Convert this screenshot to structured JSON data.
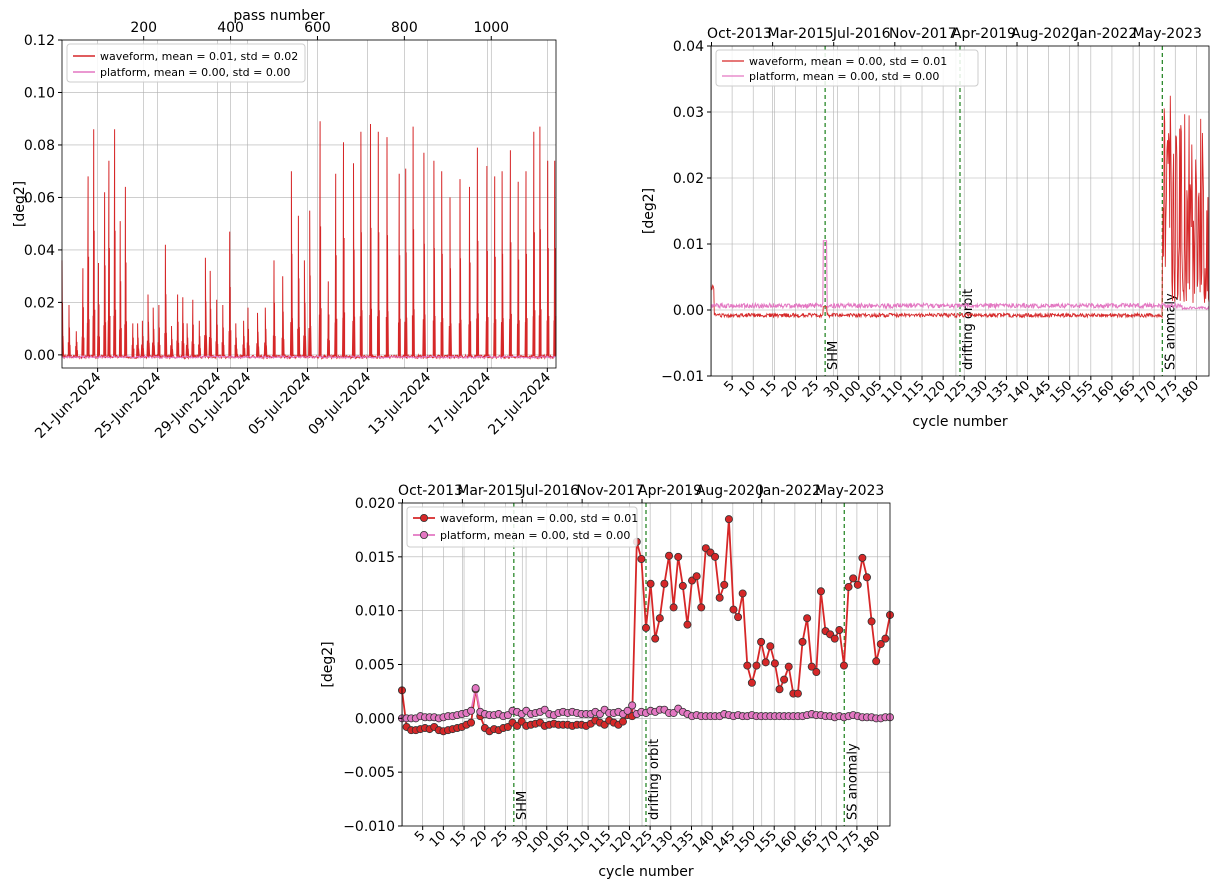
{
  "chart_data": [
    {
      "id": "p1",
      "type": "line",
      "ylabel": "[deg2]",
      "top_axis_label": "pass number",
      "ylim": [
        -0.005,
        0.12
      ],
      "yticks": [
        "0.00",
        "0.02",
        "0.04",
        "0.06",
        "0.08",
        "0.10",
        "0.12"
      ],
      "ytick_values": [
        0,
        0.02,
        0.04,
        0.06,
        0.08,
        0.1,
        0.12
      ],
      "x_bottom_ticks": [
        "21-Jun-2024",
        "25-Jun-2024",
        "29-Jun-2024",
        "01-Jul-2024",
        "05-Jul-2024",
        "09-Jul-2024",
        "13-Jul-2024",
        "17-Jul-2024",
        "21-Jul-2024"
      ],
      "x_bottom_tick_pass": [
        94,
        232,
        370,
        439,
        577,
        715,
        853,
        991,
        1129
      ],
      "x_top_ticks": [
        "200",
        "400",
        "600",
        "800",
        "1000"
      ],
      "x_top_tick_values": [
        200,
        400,
        600,
        800,
        1000
      ],
      "xlim": [
        12,
        1149
      ],
      "legend": [
        {
          "label": "waveform, mean = 0.01, std = 0.02",
          "color": "#d62728"
        },
        {
          "label": "platform, mean = 0.00, std = 0.00",
          "color": "#e377c2"
        }
      ],
      "series": [
        {
          "name": "waveform",
          "color": "#d62728",
          "spikes": [
            [
              12,
              0.036
            ],
            [
              28,
              0.019
            ],
            [
              45,
              0.009
            ],
            [
              60,
              0.033
            ],
            [
              72,
              0.068
            ],
            [
              85,
              0.086
            ],
            [
              96,
              0.035
            ],
            [
              110,
              0.062
            ],
            [
              120,
              0.074
            ],
            [
              133,
              0.086
            ],
            [
              146,
              0.051
            ],
            [
              158,
              0.064
            ],
            [
              175,
              0.012
            ],
            [
              186,
              0.012
            ],
            [
              197,
              0.013
            ],
            [
              210,
              0.023
            ],
            [
              222,
              0.018
            ],
            [
              235,
              0.019
            ],
            [
              250,
              0.042
            ],
            [
              264,
              0.011
            ],
            [
              278,
              0.023
            ],
            [
              290,
              0.022
            ],
            [
              300,
              0.012
            ],
            [
              313,
              0.021
            ],
            [
              328,
              0.013
            ],
            [
              342,
              0.037
            ],
            [
              353,
              0.032
            ],
            [
              368,
              0.021
            ],
            [
              382,
              0.019
            ],
            [
              398,
              0.047
            ],
            [
              412,
              0.012
            ],
            [
              430,
              0.013
            ],
            [
              440,
              0.018
            ],
            [
              462,
              0.016
            ],
            [
              480,
              0.018
            ],
            [
              500,
              0.036
            ],
            [
              520,
              0.03
            ],
            [
              540,
              0.07
            ],
            [
              556,
              0.053
            ],
            [
              570,
              0.036
            ],
            [
              582,
              0.055
            ],
            [
              606,
              0.089
            ],
            [
              625,
              0.028
            ],
            [
              642,
              0.069
            ],
            [
              660,
              0.081
            ],
            [
              683,
              0.073
            ],
            [
              700,
              0.085
            ],
            [
              722,
              0.088
            ],
            [
              740,
              0.085
            ],
            [
              760,
              0.083
            ],
            [
              788,
              0.069
            ],
            [
              803,
              0.071
            ],
            [
              820,
              0.087
            ],
            [
              845,
              0.077
            ],
            [
              868,
              0.074
            ],
            [
              886,
              0.07
            ],
            [
              905,
              0.06
            ],
            [
              928,
              0.067
            ],
            [
              950,
              0.064
            ],
            [
              968,
              0.079
            ],
            [
              990,
              0.072
            ],
            [
              1008,
              0.068
            ],
            [
              1025,
              0.07
            ],
            [
              1044,
              0.078
            ],
            [
              1062,
              0.066
            ],
            [
              1080,
              0.07
            ],
            [
              1098,
              0.085
            ],
            [
              1112,
              0.087
            ],
            [
              1130,
              0.074
            ],
            [
              1146,
              0.074
            ]
          ]
        },
        {
          "name": "platform",
          "color": "#e377c2",
          "baseline": -0.001
        }
      ]
    },
    {
      "id": "p2",
      "type": "line",
      "ylabel": "[deg2]",
      "xlabel": "cycle number",
      "ylim": [
        -0.01,
        0.04
      ],
      "yticks": [
        "−0.01",
        "0.00",
        "0.01",
        "0.02",
        "0.03",
        "0.04"
      ],
      "ytick_values": [
        -0.01,
        0,
        0.01,
        0.02,
        0.03,
        0.04
      ],
      "x_bottom_ticks": [
        "5",
        "10",
        "15",
        "20",
        "25",
        "30",
        "100",
        "105",
        "110",
        "115",
        "120",
        "125",
        "130",
        "135",
        "140",
        "145",
        "150",
        "155",
        "160",
        "165",
        "170",
        "175",
        "180"
      ],
      "x_top_ticks": [
        "Oct-2013",
        "Mar-2015",
        "Jul-2016",
        "Nov-2017",
        "Apr-2019",
        "Aug-2020",
        "Jan-2022",
        "May-2023"
      ],
      "events": [
        {
          "label": "SHM",
          "pos": 11
        },
        {
          "label": "drifting orbit",
          "pos": 24
        },
        {
          "label": "SS anomaly",
          "pos": 43.5
        }
      ],
      "legend": [
        {
          "label": "waveform, mean = 0.00, std = 0.01",
          "color": "#d62728"
        },
        {
          "label": "platform, mean = 0.00, std = 0.00",
          "color": "#e377c2"
        }
      ],
      "series": [
        {
          "name": "waveform",
          "color": "#d62728",
          "pre_level": -0.001,
          "post_mean": 0.012
        },
        {
          "name": "platform",
          "color": "#e377c2",
          "level": 0.0005
        }
      ]
    },
    {
      "id": "p3",
      "type": "line",
      "ylabel": "[deg2]",
      "xlabel": "cycle number",
      "ylim": [
        -0.01,
        0.02
      ],
      "yticks": [
        "−0.010",
        "−0.005",
        "0.000",
        "0.005",
        "0.010",
        "0.015",
        "0.020"
      ],
      "ytick_values": [
        -0.01,
        -0.005,
        0,
        0.005,
        0.01,
        0.015,
        0.02
      ],
      "x_bottom_ticks": [
        "5",
        "10",
        "15",
        "20",
        "25",
        "30",
        "100",
        "105",
        "110",
        "115",
        "120",
        "125",
        "130",
        "135",
        "140",
        "145",
        "150",
        "155",
        "160",
        "165",
        "170",
        "175",
        "180"
      ],
      "x_top_ticks": [
        "Oct-2013",
        "Mar-2015",
        "Jul-2016",
        "Nov-2017",
        "Apr-2019",
        "Aug-2020",
        "Jan-2022",
        "May-2023"
      ],
      "events": [
        {
          "label": "SHM",
          "pos": 11
        },
        {
          "label": "drifting orbit",
          "pos": 24
        },
        {
          "label": "SS anomaly",
          "pos": 43.5
        }
      ],
      "legend": [
        {
          "label": "waveform, mean = 0.00, std = 0.01",
          "color": "#d62728"
        },
        {
          "label": "platform, mean = 0.00, std = 0.00",
          "color": "#e377c2"
        }
      ],
      "series": [
        {
          "name": "waveform",
          "color": "#d62728",
          "values": [
            0.0026,
            -0.0008,
            -0.0011,
            -0.0011,
            -0.001,
            -0.0009,
            -0.001,
            -0.0008,
            -0.0011,
            -0.0012,
            -0.0011,
            -0.001,
            -0.0009,
            -0.0008,
            -0.0006,
            -0.0004,
            0.0027,
            0.0002,
            -0.0009,
            -0.0012,
            -0.001,
            -0.0011,
            -0.0009,
            -0.0008,
            -0.0004,
            -0.0007,
            -0.0003,
            -0.0007,
            -0.0006,
            -0.0005,
            -0.0004,
            -0.0007,
            -0.0006,
            -0.0005,
            -0.0006,
            -0.0006,
            -0.0006,
            -0.0007,
            -0.0006,
            -0.0006,
            -0.0007,
            -0.0005,
            -0.0002,
            -0.0004,
            -0.0006,
            -0.0002,
            -0.0004,
            -0.0006,
            -0.0003,
            0.0003,
            0.0002,
            0.0164,
            0.0148,
            0.0084,
            0.0125,
            0.0074,
            0.0093,
            0.0125,
            0.0151,
            0.0103,
            0.015,
            0.0123,
            0.0087,
            0.0128,
            0.0132,
            0.0103,
            0.0158,
            0.0154,
            0.015,
            0.0112,
            0.0124,
            0.0185,
            0.0101,
            0.0094,
            0.0116,
            0.0049,
            0.0033,
            0.0049,
            0.0071,
            0.0052,
            0.0067,
            0.0051,
            0.0027,
            0.0036,
            0.0048,
            0.0023,
            0.0023,
            0.0071,
            0.0093,
            0.0048,
            0.0043,
            0.0118,
            0.0081,
            0.0078,
            0.0074,
            0.0082,
            0.0049,
            0.0122,
            0.013,
            0.0124,
            0.0149,
            0.0131,
            0.009,
            0.0053,
            0.0069,
            0.0074,
            0.0096
          ]
        },
        {
          "name": "platform",
          "color": "#e377c2",
          "values": [
            0.0,
            0.0,
            0.0,
            0.0,
            0.0002,
            0.0001,
            0.0001,
            0.0001,
            0.0,
            0.0001,
            0.0002,
            0.0002,
            0.0003,
            0.0004,
            0.0005,
            0.0007,
            0.0028,
            0.0006,
            0.0004,
            0.0003,
            0.0003,
            0.0004,
            0.0002,
            0.0003,
            0.0007,
            0.0006,
            0.0004,
            0.0007,
            0.0004,
            0.0005,
            0.0006,
            0.0008,
            0.0004,
            0.0003,
            0.0005,
            0.0006,
            0.0005,
            0.0006,
            0.0005,
            0.0004,
            0.0004,
            0.0004,
            0.0006,
            0.0004,
            0.0008,
            0.0005,
            0.0005,
            0.0006,
            0.0004,
            0.0007,
            0.0012,
            0.0004,
            0.0006,
            0.0005,
            0.0007,
            0.0006,
            0.0008,
            0.0008,
            0.0005,
            0.0005,
            0.0009,
            0.0006,
            0.0004,
            0.0002,
            0.0003,
            0.0002,
            0.0002,
            0.0002,
            0.0002,
            0.0002,
            0.0004,
            0.0003,
            0.0002,
            0.0003,
            0.0002,
            0.0002,
            0.0003,
            0.0002,
            0.0002,
            0.0002,
            0.0002,
            0.0002,
            0.0002,
            0.0002,
            0.0002,
            0.0002,
            0.0002,
            0.0002,
            0.0003,
            0.0004,
            0.0003,
            0.0003,
            0.0002,
            0.0002,
            0.0001,
            0.0002,
            0.0001,
            0.0002,
            0.0003,
            0.0002,
            0.0001,
            0.0001,
            0.0001,
            0.0,
            0.0,
            0.0001,
            0.0001
          ]
        }
      ]
    }
  ]
}
